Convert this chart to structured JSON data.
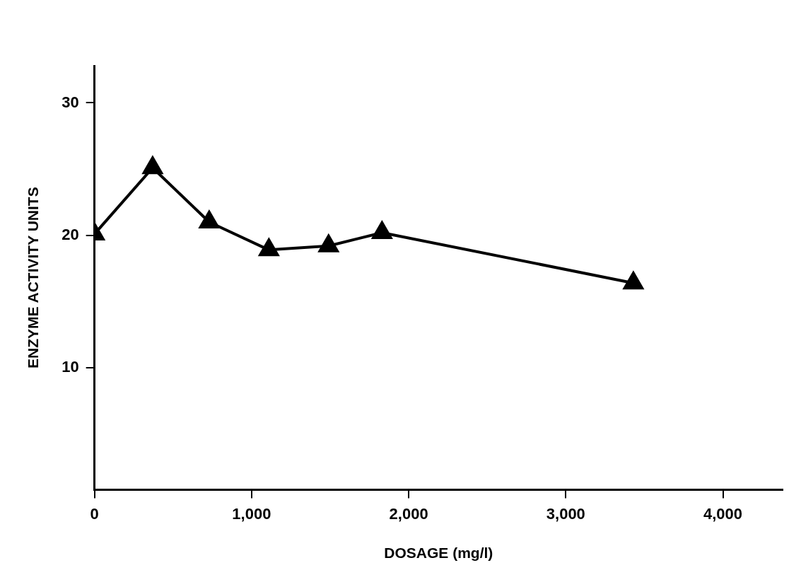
{
  "chart_data": {
    "type": "line",
    "xlabel": "DOSAGE (mg/l)",
    "ylabel": "ENZYME ACTIVITY UNITS",
    "x": [
      0,
      370,
      730,
      1110,
      1490,
      1830,
      3430
    ],
    "series": [
      {
        "color": "#000000",
        "values": [
          20.1,
          25.1,
          21.0,
          18.9,
          19.2,
          20.2,
          16.4
        ]
      }
    ],
    "xlim": [
      0,
      4380
    ],
    "xticks": [
      {
        "value": 0,
        "label": "0"
      },
      {
        "value": 1000,
        "label": "1,000"
      },
      {
        "value": 2000,
        "label": "2,000"
      },
      {
        "value": 3000,
        "label": "3,000"
      },
      {
        "value": 4000,
        "label": "4,000"
      }
    ],
    "ylim": [
      0.8,
      32.8
    ],
    "yticks": [
      10,
      20,
      30
    ],
    "grid": false,
    "legend": false,
    "marker": "triangle",
    "line_style": "solid"
  }
}
